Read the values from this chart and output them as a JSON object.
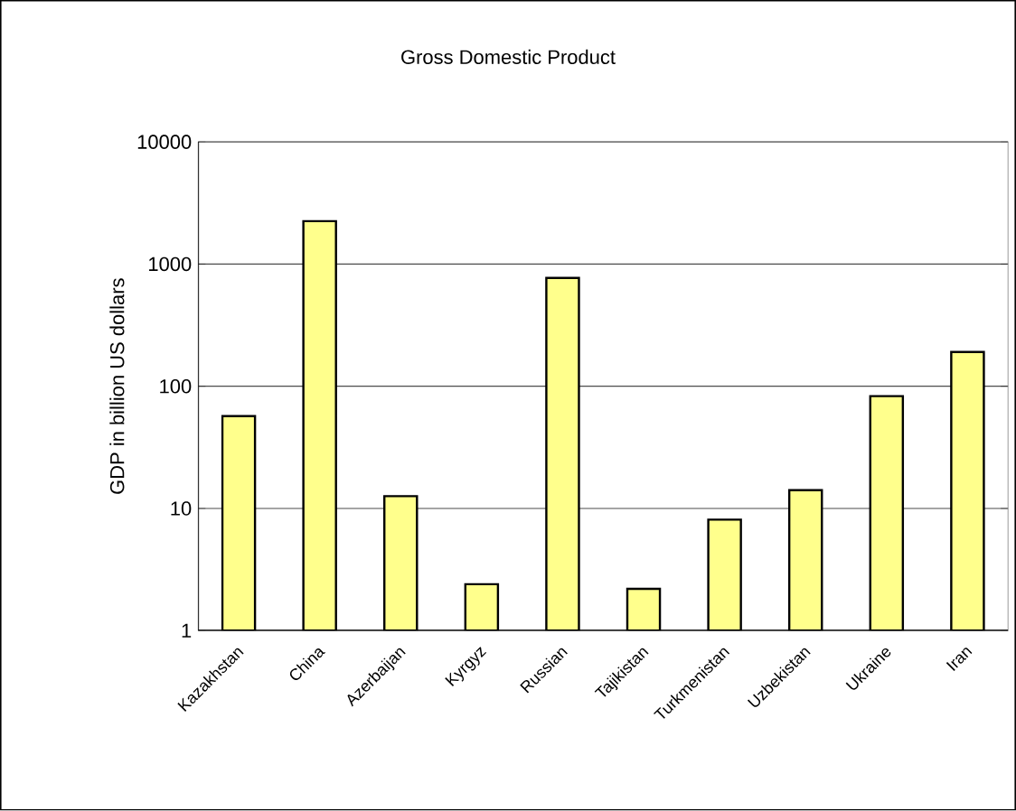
{
  "chart_data": {
    "type": "bar",
    "title": "Gross Domestic Product",
    "ylabel": "GDP in billion US dollars",
    "categories": [
      "Kazakhstan",
      "China",
      "Azerbaijan",
      "Kyrgyz",
      "Russian",
      "Tajikistan",
      "Turkmenistan",
      "Uzbekistan",
      "Ukraine",
      "Iran"
    ],
    "values": [
      57,
      2245,
      12.6,
      2.4,
      770,
      2.2,
      8.1,
      14.1,
      83,
      191
    ],
    "color": "#ffff8c",
    "log": true,
    "ylim": [
      1,
      10000
    ],
    "yticks": [
      1,
      10,
      100,
      1000,
      10000
    ],
    "grid": "y"
  }
}
